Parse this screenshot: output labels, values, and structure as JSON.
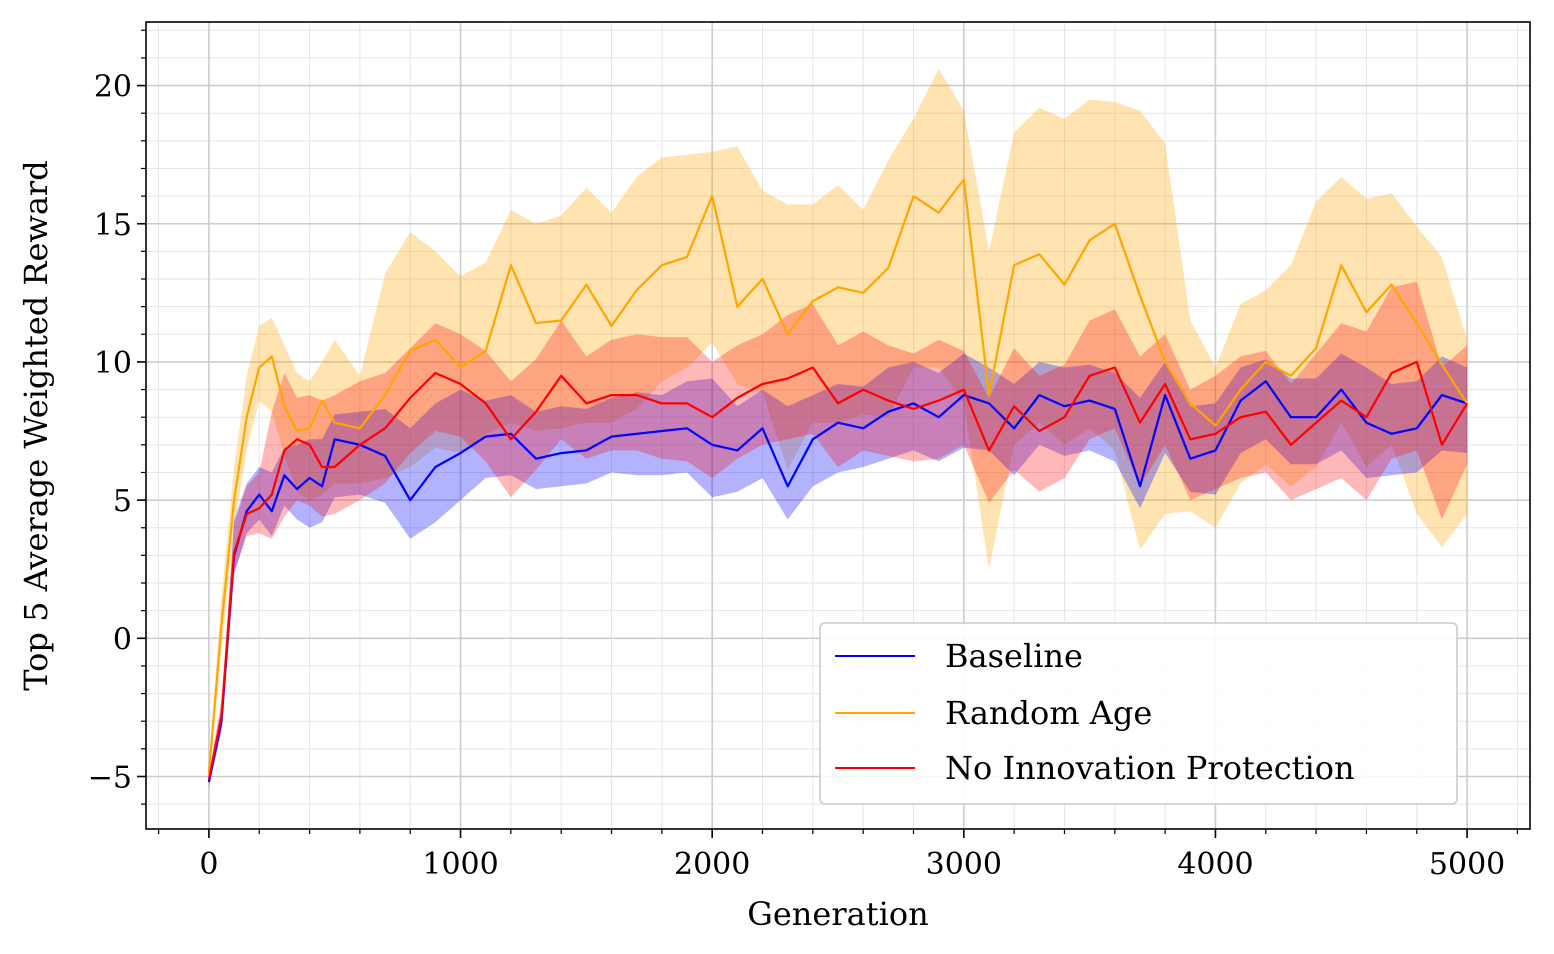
{
  "chart_data": {
    "type": "line",
    "title": "",
    "xlabel": "Generation",
    "ylabel": "Top 5 Average Weighted Reward",
    "xlim": [
      -250,
      5250
    ],
    "ylim": [
      -6.9,
      22.3
    ],
    "xticks": [
      0,
      1000,
      2000,
      3000,
      4000,
      5000
    ],
    "xtick_labels": [
      "0",
      "1000",
      "2000",
      "3000",
      "4000",
      "5000"
    ],
    "yticks": [
      -5,
      0,
      5,
      10,
      15,
      20
    ],
    "ytick_labels": [
      "−5",
      "0",
      "5",
      "10",
      "15",
      "20"
    ],
    "grid": "major and minor",
    "legend_position": "lower-right",
    "band": "shaded min–max range per series",
    "x": [
      0,
      50,
      100,
      150,
      200,
      250,
      300,
      350,
      400,
      450,
      500,
      600,
      700,
      800,
      900,
      1000,
      1100,
      1200,
      1300,
      1400,
      1500,
      1600,
      1700,
      1800,
      1900,
      2000,
      2100,
      2200,
      2300,
      2400,
      2500,
      2600,
      2700,
      2800,
      2900,
      3000,
      3100,
      3200,
      3300,
      3400,
      3500,
      3600,
      3700,
      3800,
      3900,
      4000,
      4100,
      4200,
      4300,
      4400,
      4500,
      4600,
      4700,
      4800,
      4900,
      5000
    ],
    "series": [
      {
        "name": "Baseline",
        "color": "#0000ff",
        "values": [
          -5.2,
          -3.0,
          3.0,
          4.6,
          5.2,
          4.6,
          5.9,
          5.4,
          5.8,
          5.5,
          7.2,
          7.0,
          6.6,
          5.0,
          6.2,
          6.7,
          7.3,
          7.4,
          6.5,
          6.7,
          6.8,
          7.3,
          7.4,
          7.5,
          7.6,
          7.0,
          6.8,
          7.6,
          5.5,
          7.2,
          7.8,
          7.6,
          8.2,
          8.5,
          8.0,
          8.8,
          8.5,
          7.6,
          8.8,
          8.4,
          8.6,
          8.3,
          5.5,
          8.8,
          6.5,
          6.8,
          8.6,
          9.3,
          8.0,
          8.0,
          9.0,
          7.8,
          7.4,
          7.6,
          8.8,
          8.5
        ],
        "upper": [
          -5.0,
          -2.5,
          4.3,
          5.6,
          6.2,
          6.0,
          6.9,
          7.0,
          7.2,
          7.2,
          8.1,
          8.2,
          8.3,
          7.6,
          8.5,
          9.0,
          8.6,
          8.8,
          8.2,
          8.4,
          8.3,
          8.7,
          8.9,
          8.8,
          9.3,
          9.4,
          8.4,
          9.0,
          8.4,
          8.8,
          9.2,
          9.1,
          9.8,
          10.0,
          9.6,
          10.3,
          9.8,
          9.2,
          10.0,
          9.8,
          9.9,
          9.6,
          8.7,
          10.0,
          8.4,
          8.5,
          9.8,
          10.1,
          9.4,
          9.4,
          10.3,
          9.8,
          9.2,
          9.3,
          10.2,
          9.8
        ],
        "lower": [
          -5.4,
          -3.4,
          2.3,
          3.8,
          4.3,
          3.7,
          4.8,
          4.3,
          4.0,
          4.2,
          5.1,
          5.2,
          4.9,
          3.6,
          4.2,
          5.0,
          5.8,
          5.9,
          5.4,
          5.5,
          5.6,
          6.0,
          5.9,
          5.9,
          6.0,
          5.1,
          5.3,
          5.8,
          4.3,
          5.5,
          6.0,
          6.2,
          6.5,
          6.8,
          6.4,
          6.9,
          6.8,
          5.9,
          7.0,
          6.6,
          6.8,
          6.4,
          4.7,
          6.7,
          5.3,
          5.2,
          6.7,
          7.2,
          6.3,
          6.3,
          6.8,
          5.8,
          5.9,
          6.0,
          6.8,
          6.7
        ]
      },
      {
        "name": "Random Age",
        "color": "#ffa500",
        "values": [
          -4.9,
          0.5,
          5.0,
          8.0,
          9.8,
          10.2,
          8.4,
          7.5,
          7.6,
          8.6,
          7.8,
          7.6,
          8.8,
          10.4,
          10.8,
          9.8,
          10.4,
          13.5,
          11.4,
          11.5,
          12.8,
          11.3,
          12.6,
          13.5,
          13.8,
          16.0,
          12.0,
          13.0,
          11.0,
          12.2,
          12.7,
          12.5,
          13.4,
          16.0,
          15.4,
          16.6,
          8.8,
          13.5,
          13.9,
          12.8,
          14.4,
          15.0,
          12.4,
          10.0,
          8.5,
          7.7,
          9.0,
          10.0,
          9.5,
          10.5,
          13.5,
          11.8,
          12.8,
          11.4,
          9.9,
          8.5
        ],
        "upper": [
          -4.7,
          1.5,
          6.2,
          9.5,
          11.3,
          11.6,
          10.6,
          9.6,
          9.3,
          10.0,
          10.8,
          9.5,
          13.2,
          14.7,
          14.0,
          13.1,
          13.6,
          15.5,
          15.0,
          15.3,
          16.3,
          15.4,
          16.7,
          17.4,
          17.5,
          17.6,
          17.8,
          16.2,
          15.7,
          15.7,
          16.4,
          15.5,
          17.3,
          18.8,
          20.6,
          19.1,
          14.0,
          18.3,
          19.2,
          18.8,
          19.5,
          19.4,
          19.1,
          17.9,
          11.5,
          9.8,
          12.1,
          12.6,
          13.5,
          15.8,
          16.7,
          15.9,
          16.1,
          14.9,
          13.8,
          10.8
        ],
        "lower": [
          -5.1,
          -0.5,
          4.0,
          6.8,
          8.6,
          8.2,
          6.6,
          5.3,
          5.0,
          5.2,
          5.6,
          5.6,
          5.8,
          6.2,
          6.9,
          6.7,
          7.4,
          7.8,
          7.5,
          7.6,
          7.8,
          7.8,
          8.3,
          9.3,
          9.8,
          10.7,
          9.2,
          8.9,
          6.1,
          7.8,
          7.8,
          8.1,
          8.0,
          9.8,
          9.8,
          8.5,
          2.5,
          7.0,
          7.8,
          7.0,
          7.6,
          6.8,
          3.2,
          4.5,
          4.6,
          4.0,
          5.6,
          6.3,
          5.5,
          6.2,
          7.8,
          6.2,
          7.0,
          4.5,
          3.3,
          4.5
        ]
      },
      {
        "name": "No Innovation Protection",
        "color": "#ff0000",
        "values": [
          -5.1,
          -2.8,
          3.1,
          4.5,
          4.7,
          5.2,
          6.8,
          7.2,
          7.0,
          6.2,
          6.2,
          7.0,
          7.6,
          8.7,
          9.6,
          9.2,
          8.5,
          7.2,
          8.2,
          9.5,
          8.5,
          8.8,
          8.8,
          8.5,
          8.5,
          8.0,
          8.7,
          9.2,
          9.4,
          9.8,
          8.5,
          9.0,
          8.6,
          8.3,
          8.6,
          9.0,
          6.8,
          8.4,
          7.5,
          8.0,
          9.5,
          9.8,
          7.8,
          9.2,
          7.2,
          7.4,
          8.0,
          8.2,
          7.0,
          7.8,
          8.6,
          8.0,
          9.6,
          10.0,
          7.0,
          8.5
        ],
        "upper": [
          -4.9,
          -2.2,
          4.1,
          5.5,
          6.0,
          8.2,
          9.6,
          8.7,
          8.8,
          8.6,
          8.8,
          9.3,
          9.6,
          10.5,
          11.4,
          11.0,
          10.4,
          9.3,
          10.1,
          11.5,
          10.2,
          10.8,
          11.0,
          10.9,
          10.9,
          10.0,
          10.6,
          11.0,
          11.7,
          12.1,
          10.6,
          11.1,
          10.6,
          10.3,
          10.8,
          10.4,
          8.7,
          10.5,
          9.5,
          9.9,
          11.5,
          11.9,
          10.2,
          11.0,
          9.0,
          9.5,
          10.2,
          10.4,
          9.2,
          10.3,
          11.4,
          11.1,
          12.7,
          12.9,
          9.8,
          10.6
        ],
        "lower": [
          -5.3,
          -3.3,
          2.4,
          3.7,
          3.8,
          3.6,
          4.4,
          5.0,
          4.8,
          4.4,
          4.5,
          5.0,
          5.6,
          6.7,
          7.5,
          7.3,
          6.4,
          5.1,
          6.1,
          7.2,
          6.5,
          6.8,
          6.8,
          6.5,
          6.4,
          5.8,
          6.5,
          7.0,
          7.2,
          7.4,
          6.2,
          6.8,
          6.6,
          6.4,
          6.5,
          7.0,
          4.9,
          6.1,
          5.3,
          5.8,
          7.2,
          7.6,
          5.5,
          7.0,
          5.0,
          5.4,
          5.8,
          6.0,
          5.0,
          5.4,
          5.8,
          5.0,
          6.5,
          6.8,
          4.3,
          6.3
        ]
      }
    ]
  }
}
